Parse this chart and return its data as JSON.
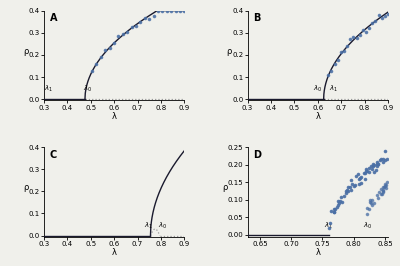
{
  "panels": [
    "A",
    "B",
    "C",
    "D"
  ],
  "background_color": "#f0f0eb",
  "line_color": "#1a1a2e",
  "dot_color": "#4a6fa5",
  "dotted_line_color": "#999999",
  "A": {
    "xlim": [
      0.3,
      0.9
    ],
    "ylim": [
      -0.005,
      0.4
    ],
    "xlabel": "λ",
    "ylabel": "ρ",
    "xticks": [
      0.3,
      0.4,
      0.5,
      0.6,
      0.7,
      0.8,
      0.9
    ],
    "yticks": [
      0.0,
      0.1,
      0.2,
      0.3,
      0.4
    ],
    "lambda0": 0.475,
    "lambda1": 0.32,
    "scale": 0.72
  },
  "B": {
    "xlim": [
      0.3,
      0.9
    ],
    "ylim": [
      -0.005,
      0.4
    ],
    "xlabel": "λ",
    "ylabel": "ρ",
    "xticks": [
      0.3,
      0.4,
      0.5,
      0.6,
      0.7,
      0.8,
      0.9
    ],
    "yticks": [
      0.0,
      0.1,
      0.2,
      0.3,
      0.4
    ],
    "lambda0": 0.625,
    "lambda1": 0.645,
    "scale": 0.75
  },
  "C": {
    "xlim": [
      0.3,
      0.9
    ],
    "ylim": [
      -0.005,
      0.4
    ],
    "xlabel": "λ",
    "ylabel": "ρ",
    "xticks": [
      0.3,
      0.4,
      0.5,
      0.6,
      0.7,
      0.8,
      0.9
    ],
    "yticks": [
      0.0,
      0.1,
      0.2,
      0.3,
      0.4
    ],
    "lambda0": 0.795,
    "lambda1": 0.755,
    "scale": 1.4
  },
  "D": {
    "xlim": [
      0.63,
      0.855
    ],
    "ylim": [
      -0.005,
      0.25
    ],
    "xlabel": "λ",
    "ylabel": "ρ",
    "xticks": [
      0.65,
      0.7,
      0.75,
      0.8,
      0.85
    ],
    "yticks": [
      0.0,
      0.05,
      0.1,
      0.15,
      0.2,
      0.25
    ],
    "lambda0": 0.82,
    "lambda1": 0.76,
    "scale": 1.4
  }
}
